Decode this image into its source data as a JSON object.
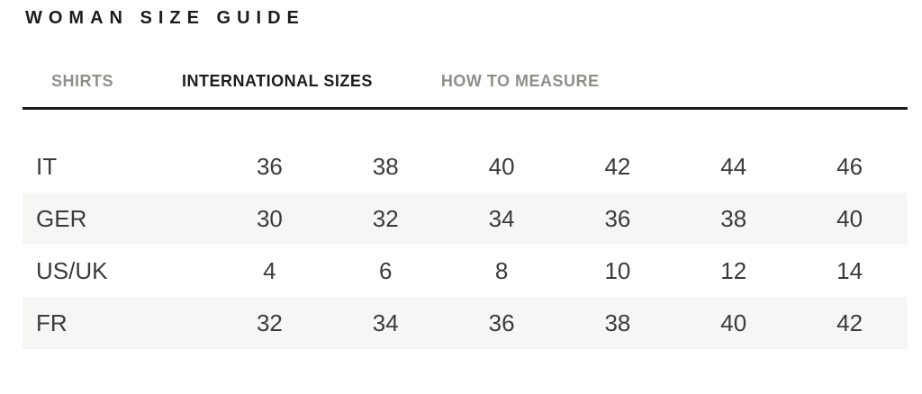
{
  "page": {
    "title": "WOMAN SIZE GUIDE"
  },
  "tabs": [
    {
      "label": "SHIRTS",
      "active": false
    },
    {
      "label": "INTERNATIONAL SIZES",
      "active": true
    },
    {
      "label": "HOW TO MEASURE",
      "active": false
    }
  ],
  "size_table": {
    "rows": [
      {
        "label": "IT",
        "values": [
          "36",
          "38",
          "40",
          "42",
          "44",
          "46"
        ]
      },
      {
        "label": "GER",
        "values": [
          "30",
          "32",
          "34",
          "36",
          "38",
          "40"
        ]
      },
      {
        "label": "US/UK",
        "values": [
          "4",
          "6",
          "8",
          "10",
          "12",
          "14"
        ]
      },
      {
        "label": "FR",
        "values": [
          "32",
          "34",
          "36",
          "38",
          "40",
          "42"
        ]
      }
    ]
  },
  "colors": {
    "accent_dark": "#1d1c1a",
    "inactive_tab": "#908e89",
    "table_text": "#3b3b3b",
    "row_stripe": "#f6f6f5",
    "background": "#ffffff"
  }
}
